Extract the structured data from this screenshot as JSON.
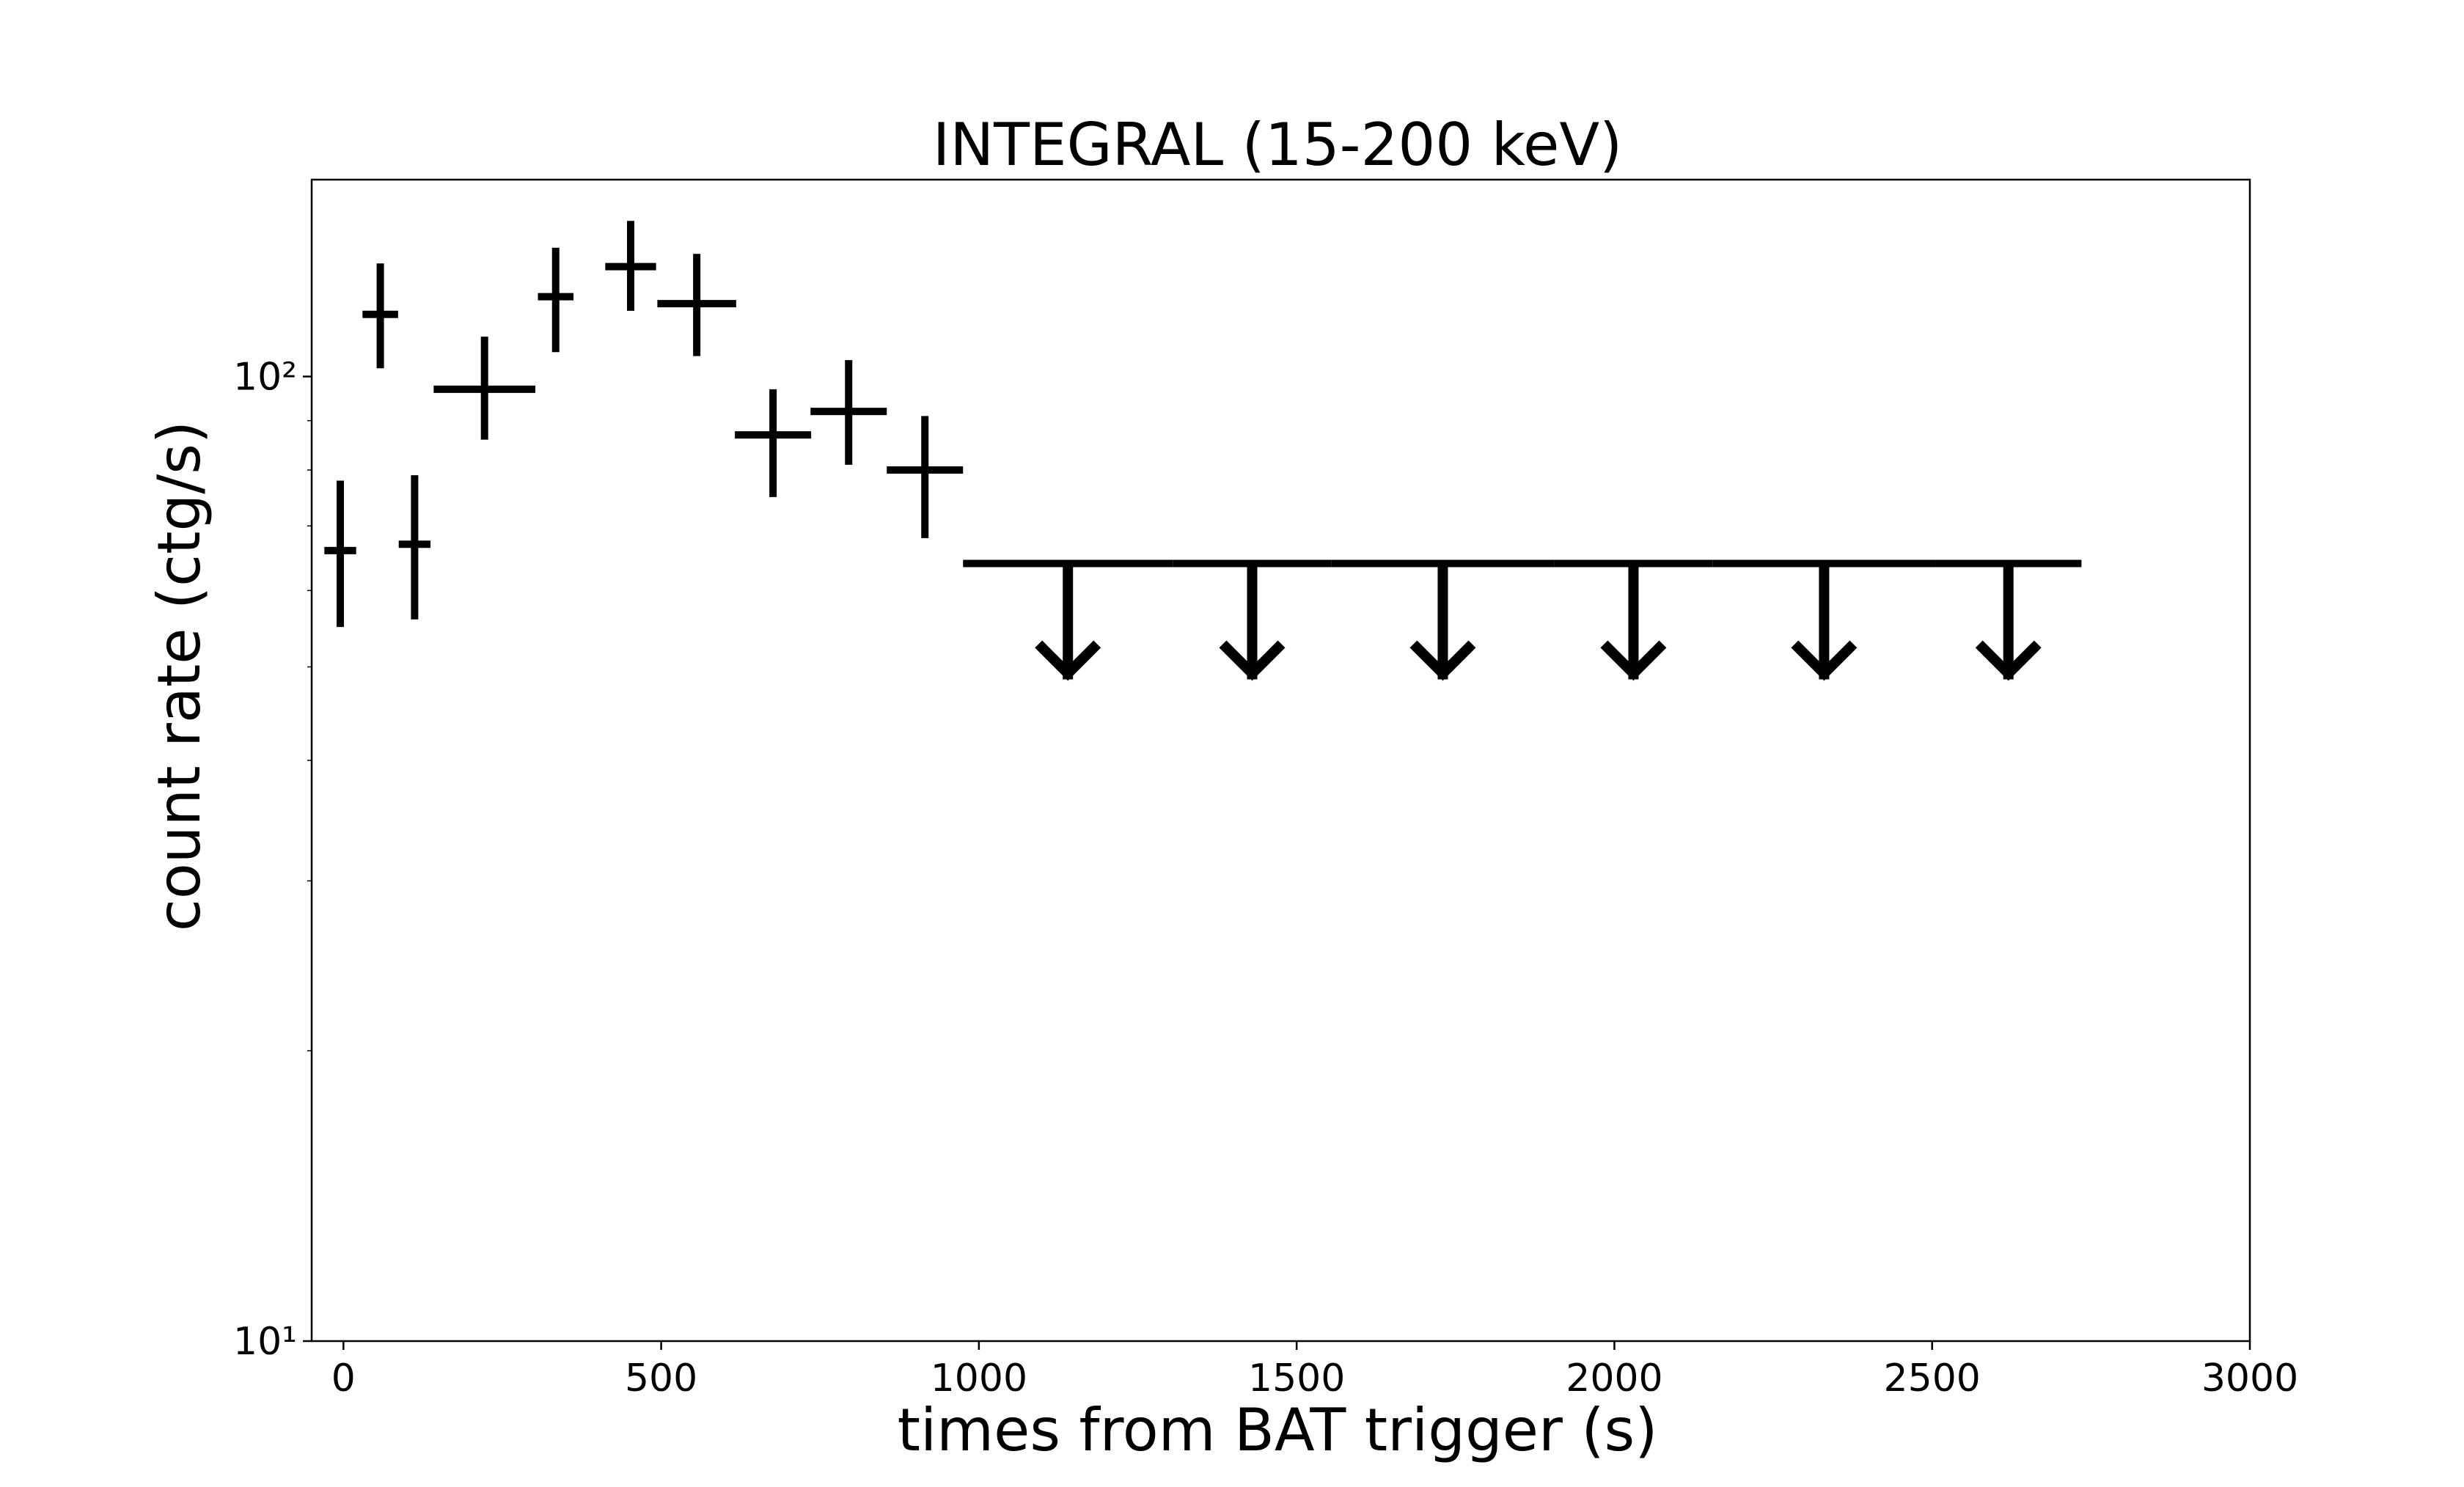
{
  "chart_data": {
    "type": "scatter",
    "title": "INTEGRAL (15-200 keV)",
    "xlabel": "times from BAT trigger (s)",
    "ylabel": "count rate (ctg/s)",
    "xlim": [
      -50,
      3000
    ],
    "ylim": [
      10,
      160
    ],
    "yscale": "log",
    "xticks": [
      0,
      500,
      1000,
      1500,
      2000,
      2500,
      3000
    ],
    "yticks": [
      {
        "value": 10,
        "label": "10¹"
      },
      {
        "value": 100,
        "label": "10²"
      }
    ],
    "grid": false,
    "colors": {
      "marker": "#000000"
    },
    "detections": [
      {
        "x": -5,
        "xerr": 25,
        "y": 66,
        "ylo": 55,
        "yhi": 78
      },
      {
        "x": 58,
        "xerr": 28,
        "y": 116,
        "ylo": 102,
        "yhi": 131
      },
      {
        "x": 112,
        "xerr": 25,
        "y": 67,
        "ylo": 56,
        "yhi": 79
      },
      {
        "x": 222,
        "xerr": 80,
        "y": 97,
        "ylo": 86,
        "yhi": 110
      },
      {
        "x": 334,
        "xerr": 28,
        "y": 121,
        "ylo": 106,
        "yhi": 136
      },
      {
        "x": 452,
        "xerr": 40,
        "y": 130,
        "ylo": 117,
        "yhi": 145
      },
      {
        "x": 556,
        "xerr": 62,
        "y": 119,
        "ylo": 105,
        "yhi": 134
      },
      {
        "x": 676,
        "xerr": 60,
        "y": 87,
        "ylo": 75,
        "yhi": 97
      },
      {
        "x": 795,
        "xerr": 60,
        "y": 92,
        "ylo": 81,
        "yhi": 104
      },
      {
        "x": 915,
        "xerr": 60,
        "y": 80,
        "ylo": 68,
        "yhi": 91
      }
    ],
    "upper_limits": [
      {
        "x": 1140,
        "xerr": 165,
        "y": 64
      },
      {
        "x": 1430,
        "xerr": 125,
        "y": 64
      },
      {
        "x": 1730,
        "xerr": 175,
        "y": 64
      },
      {
        "x": 2030,
        "xerr": 125,
        "y": 64
      },
      {
        "x": 2330,
        "xerr": 175,
        "y": 64
      },
      {
        "x": 2620,
        "xerr": 115,
        "y": 64
      }
    ]
  }
}
